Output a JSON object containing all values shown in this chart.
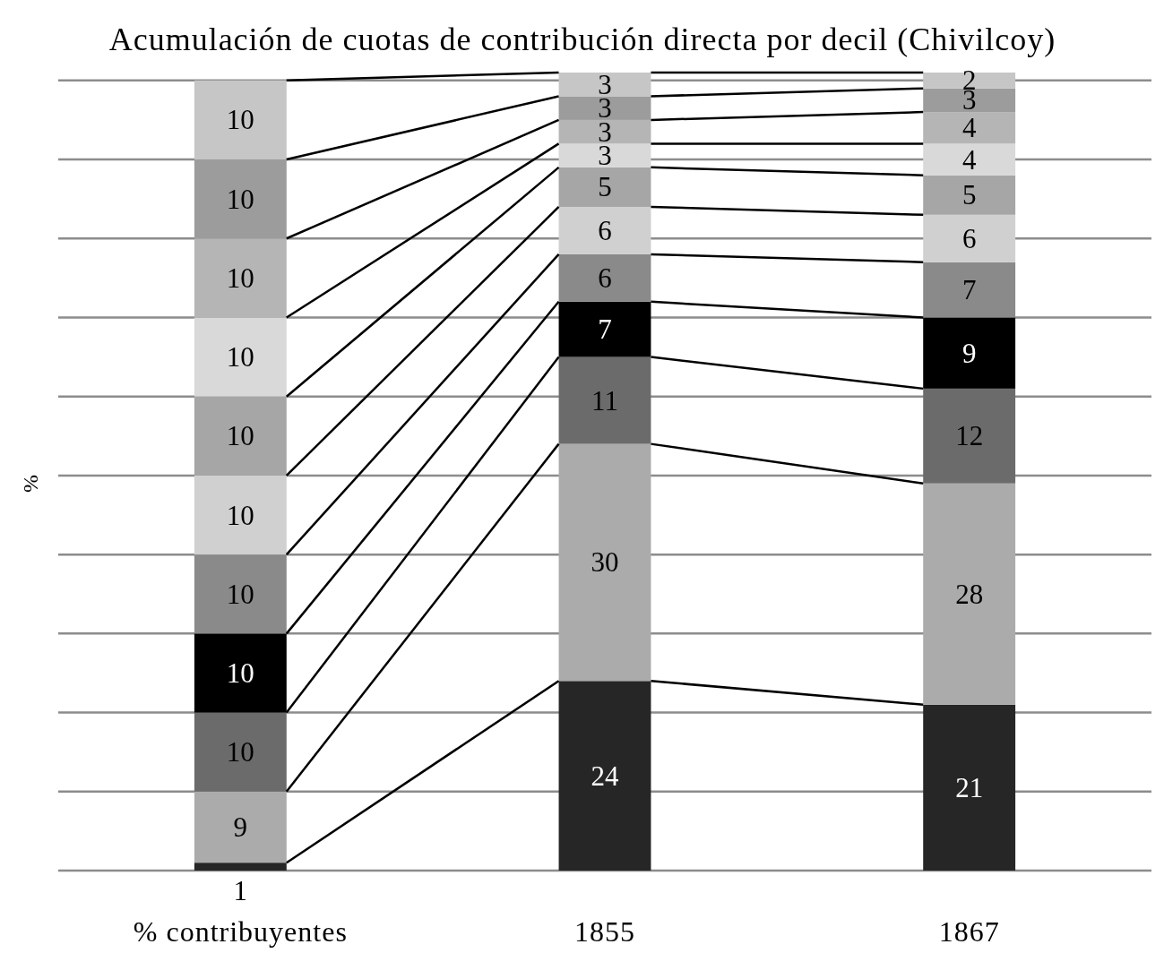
{
  "chart_data": {
    "type": "bar",
    "title": "Acumulación de cuotas de contribución directa por decil (Chivilcoy)",
    "ylabel": "%",
    "categories": [
      "% contribuyentes",
      "1855",
      "1867"
    ],
    "stacked": true,
    "ylim": [
      0,
      101
    ],
    "yticks": [
      {
        "value": 0,
        "label": null
      },
      {
        "value": 10,
        "label": null
      },
      {
        "value": 20,
        "label": null
      },
      {
        "value": 30,
        "label": null
      },
      {
        "value": 40,
        "label": null
      },
      {
        "value": 50,
        "label": null
      },
      {
        "value": 60,
        "label": null
      },
      {
        "value": 70,
        "label": null
      },
      {
        "value": 80,
        "label": null
      },
      {
        "value": 90,
        "label": null
      },
      {
        "value": 100,
        "label": null
      }
    ],
    "tick_labels": "x",
    "grid": "y",
    "data_labels": true,
    "series": [
      {
        "color": "#262626",
        "values": [
          1,
          24,
          21
        ]
      },
      {
        "color": "#ababab",
        "values": [
          9,
          30,
          28
        ]
      },
      {
        "color": "#6b6b6b",
        "values": [
          10,
          11,
          12
        ]
      },
      {
        "color": "#000000",
        "values": [
          10,
          7,
          9
        ]
      },
      {
        "color": "#8a8a8a",
        "values": [
          10,
          6,
          7
        ]
      },
      {
        "color": "#d0d0d0",
        "values": [
          10,
          6,
          6
        ]
      },
      {
        "color": "#a6a6a6",
        "values": [
          10,
          5,
          5
        ]
      },
      {
        "color": "#d9d9d9",
        "values": [
          10,
          3,
          4
        ]
      },
      {
        "color": "#b5b5b5",
        "values": [
          10,
          3,
          4
        ]
      },
      {
        "color": "#9c9c9c",
        "values": [
          10,
          3,
          3
        ]
      },
      {
        "color": "#c6c6c6",
        "values": [
          10,
          3,
          2
        ]
      }
    ]
  }
}
